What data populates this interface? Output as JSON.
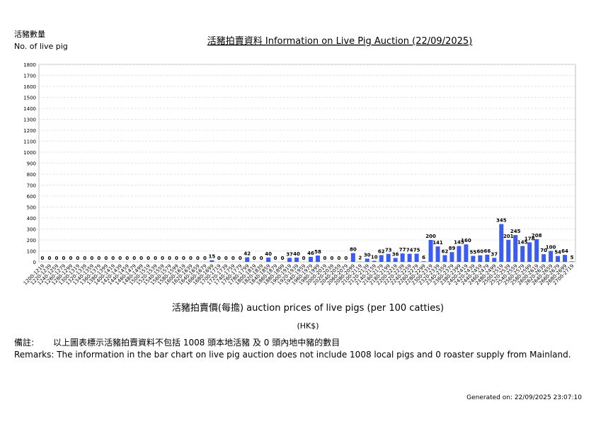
{
  "header": {
    "y_label_zh": "活豬數量",
    "y_label_en": "No. of live pig"
  },
  "chart_data": {
    "type": "bar",
    "title": "活豬拍賣資料 Information on Live Pig Auction (22/09/2025)",
    "x_label": "活豬拍賣價(每擔) auction prices of live pigs (per 100 catties)",
    "x_unit": "(HK$)",
    "categories": [
      "1200-1219",
      "1220-1239",
      "1240-1259",
      "1260-1279",
      "1280-1299",
      "1300-1319",
      "1320-1339",
      "1340-1359",
      "1360-1379",
      "1380-1399",
      "1400-1419",
      "1420-1439",
      "1440-1459",
      "1460-1479",
      "1480-1499",
      "1500-1519",
      "1520-1539",
      "1540-1559",
      "1560-1579",
      "1580-1599",
      "1600-1619",
      "1620-1639",
      "1640-1659",
      "1660-1679",
      "1680-1699",
      "1700-1719",
      "1720-1739",
      "1740-1759",
      "1760-1779",
      "1780-1799",
      "1800-1819",
      "1820-1839",
      "1840-1859",
      "1860-1879",
      "1880-1899",
      "1900-1919",
      "1920-1939",
      "1940-1959",
      "1960-1979",
      "1980-1999",
      "2000-2019",
      "2020-2039",
      "2040-2059",
      "2060-2079",
      "2080-2099",
      "2100-2119",
      "2120-2139",
      "2140-2159",
      "2160-2179",
      "2180-2199",
      "2200-2219",
      "2220-2239",
      "2240-2259",
      "2260-2279",
      "2280-2299",
      "2300-2319",
      "2320-2339",
      "2340-2359",
      "2360-2379",
      "2380-2399",
      "2400-2419",
      "2420-2439",
      "2440-2459",
      "2460-2479",
      "2480-2499",
      "2500-2519",
      "2520-2539",
      "2540-2559",
      "2560-2579",
      "2580-2599",
      "2600-2619",
      "2620-2639",
      "2640-2659",
      "2660-2679",
      "2680-2699",
      "2700-2719"
    ],
    "values": [
      0,
      0,
      0,
      0,
      0,
      0,
      0,
      0,
      0,
      0,
      0,
      0,
      0,
      0,
      0,
      0,
      0,
      0,
      0,
      0,
      0,
      0,
      0,
      0,
      15,
      0,
      0,
      0,
      0,
      42,
      0,
      0,
      40,
      0,
      0,
      37,
      40,
      0,
      46,
      58,
      0,
      0,
      0,
      0,
      80,
      2,
      30,
      10,
      62,
      73,
      36,
      77,
      74,
      75,
      6,
      200,
      141,
      62,
      89,
      145,
      160,
      55,
      60,
      66,
      37,
      345,
      201,
      245,
      145,
      178,
      208,
      70,
      100,
      54,
      64,
      5
    ],
    "color": "#3b5cf0",
    "ylim": [
      0,
      1800
    ],
    "yticks": [
      0,
      100,
      200,
      300,
      400,
      500,
      600,
      700,
      800,
      900,
      1000,
      1100,
      1200,
      1300,
      1400,
      1500,
      1600,
      1700,
      1800
    ],
    "grid": true
  },
  "remarks": {
    "label_zh": "備註:",
    "text_zh": "以上圖表標示活豬拍賣資料不包括 1008 頭本地活豬 及 0 頭內地中豬的數目",
    "text_en": "Remarks: The information in the bar chart on live pig auction does not include 1008 local pigs and 0 roaster supply from Mainland."
  },
  "footer": {
    "generated": "Generated on: 22/09/2025 23:07:10"
  }
}
